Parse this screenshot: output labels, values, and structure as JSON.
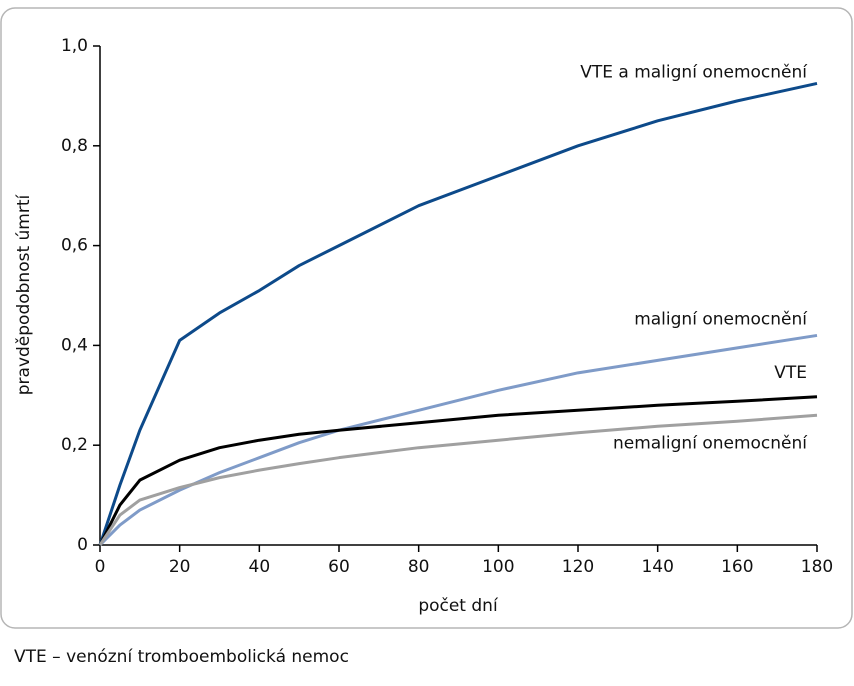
{
  "chart_data": {
    "type": "line",
    "x": [
      0,
      5,
      10,
      20,
      30,
      40,
      50,
      60,
      80,
      100,
      120,
      140,
      160,
      180
    ],
    "series": [
      {
        "name": "VTE a maligní onemocnění",
        "color": "#0d4a8a",
        "values": [
          0,
          0.12,
          0.23,
          0.41,
          0.465,
          0.51,
          0.56,
          0.6,
          0.68,
          0.74,
          0.8,
          0.85,
          0.89,
          0.925
        ]
      },
      {
        "name": "maligní onemocnění",
        "color": "#7f9bc8",
        "values": [
          0,
          0.04,
          0.07,
          0.11,
          0.145,
          0.175,
          0.205,
          0.23,
          0.27,
          0.31,
          0.345,
          0.37,
          0.395,
          0.42
        ]
      },
      {
        "name": "VTE",
        "color": "#000000",
        "values": [
          0,
          0.08,
          0.13,
          0.17,
          0.195,
          0.21,
          0.222,
          0.23,
          0.245,
          0.26,
          0.27,
          0.28,
          0.288,
          0.297
        ]
      },
      {
        "name": "nemaligní onemocnění",
        "color": "#a0a0a0",
        "values": [
          0,
          0.06,
          0.09,
          0.115,
          0.135,
          0.15,
          0.163,
          0.175,
          0.195,
          0.21,
          0.225,
          0.238,
          0.248,
          0.26
        ]
      }
    ],
    "xlabel": "počet dní",
    "ylabel": "pravděpodobnost úmrtí",
    "xlim": [
      0,
      180
    ],
    "xticks": [
      0,
      20,
      40,
      60,
      80,
      100,
      120,
      140,
      160,
      180
    ],
    "ylim": [
      0,
      1
    ],
    "yticks": [
      0,
      {
        "value": 0.2,
        "label": "0,2"
      },
      {
        "value": 0.4,
        "label": "0,4"
      },
      {
        "value": 0.6,
        "label": "0,6"
      },
      {
        "value": 0.8,
        "label": "0,8"
      },
      {
        "value": 1,
        "label": "1,0"
      }
    ],
    "footnote": "VTE – venózní tromboembolická nemoc"
  }
}
